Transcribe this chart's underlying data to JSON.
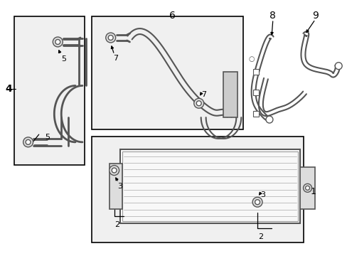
{
  "bg_color": "#ffffff",
  "border_color": "#000000",
  "line_color": "#555555",
  "label_color": "#000000",
  "fig_width": 4.89,
  "fig_height": 3.6,
  "dpi": 100
}
